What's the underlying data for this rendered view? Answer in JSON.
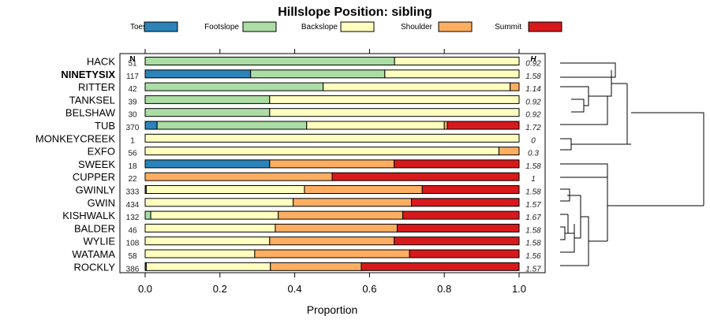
{
  "chart_data": {
    "type": "bar",
    "stacked": true,
    "orientation": "horizontal",
    "title": "Hillslope Position: sibling",
    "xlabel": "Proportion",
    "ylabel": "",
    "xlim": [
      0,
      1
    ],
    "x_ticks": [
      "0.0",
      "0.2",
      "0.4",
      "0.6",
      "0.8",
      "1.0"
    ],
    "x_tick_values": [
      0,
      0.2,
      0.4,
      0.6,
      0.8,
      1.0
    ],
    "n_header": "N",
    "h_header": "H",
    "legend": [
      {
        "name": "Toeslope",
        "color": "#2b83ba"
      },
      {
        "name": "Footslope",
        "color": "#abdda4"
      },
      {
        "name": "Backslope",
        "color": "#ffffbf"
      },
      {
        "name": "Shoulder",
        "color": "#fdae61"
      },
      {
        "name": "Summit",
        "color": "#d7191c"
      }
    ],
    "rows": [
      {
        "name": "HACK",
        "bold": false,
        "n": "51",
        "h": "0.92",
        "values": [
          0,
          0.667,
          0.333,
          0,
          0
        ]
      },
      {
        "name": "NINETYSIX",
        "bold": true,
        "n": "117",
        "h": "1.58",
        "values": [
          0.282,
          0.359,
          0.359,
          0,
          0
        ]
      },
      {
        "name": "RITTER",
        "bold": false,
        "n": "42",
        "h": "1.14",
        "values": [
          0,
          0.476,
          0.5,
          0.024,
          0
        ]
      },
      {
        "name": "TANKSEL",
        "bold": false,
        "n": "39",
        "h": "0.92",
        "values": [
          0,
          0.333,
          0.667,
          0,
          0
        ]
      },
      {
        "name": "BELSHAW",
        "bold": false,
        "n": "30",
        "h": "0.92",
        "values": [
          0,
          0.333,
          0.667,
          0,
          0
        ]
      },
      {
        "name": "TUB",
        "bold": false,
        "n": "370",
        "h": "1.72",
        "values": [
          0.032,
          0.4,
          0.368,
          0.008,
          0.192
        ]
      },
      {
        "name": "MONKEYCREEK",
        "bold": false,
        "n": "1",
        "h": "0",
        "values": [
          0,
          0,
          1,
          0,
          0
        ]
      },
      {
        "name": "EXFO",
        "bold": false,
        "n": "56",
        "h": "0.3",
        "values": [
          0,
          0,
          0.946,
          0.054,
          0
        ]
      },
      {
        "name": "SWEEK",
        "bold": false,
        "n": "18",
        "h": "1.58",
        "values": [
          0.333,
          0,
          0,
          0.333,
          0.334
        ]
      },
      {
        "name": "CUPPER",
        "bold": false,
        "n": "22",
        "h": "1",
        "values": [
          0,
          0,
          0,
          0.5,
          0.5
        ]
      },
      {
        "name": "GWINLY",
        "bold": false,
        "n": "333",
        "h": "1.58",
        "values": [
          0.003,
          0,
          0.423,
          0.315,
          0.259
        ]
      },
      {
        "name": "GWIN",
        "bold": false,
        "n": "434",
        "h": "1.57",
        "values": [
          0,
          0,
          0.396,
          0.316,
          0.288
        ]
      },
      {
        "name": "KISHWALK",
        "bold": false,
        "n": "132",
        "h": "1.67",
        "values": [
          0,
          0.015,
          0.341,
          0.333,
          0.311
        ]
      },
      {
        "name": "BALDER",
        "bold": false,
        "n": "46",
        "h": "1.58",
        "values": [
          0,
          0,
          0.348,
          0.326,
          0.326
        ]
      },
      {
        "name": "WYLIE",
        "bold": false,
        "n": "108",
        "h": "1.58",
        "values": [
          0,
          0,
          0.333,
          0.333,
          0.334
        ]
      },
      {
        "name": "WATAMA",
        "bold": false,
        "n": "58",
        "h": "1.56",
        "values": [
          0,
          0,
          0.293,
          0.414,
          0.293
        ]
      },
      {
        "name": "ROCKLY",
        "bold": false,
        "n": "386",
        "h": "1.57",
        "values": [
          0.003,
          0,
          0.332,
          0.243,
          0.422
        ]
      }
    ],
    "dendrogram": {
      "linkage": "unlabeled hierarchical clustering of the rows"
    }
  }
}
